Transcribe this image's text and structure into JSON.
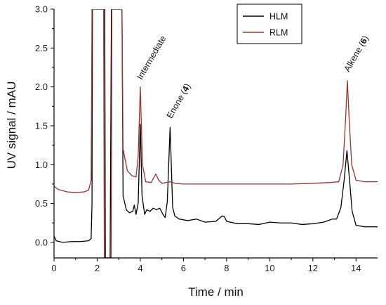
{
  "chart_data": {
    "type": "line",
    "xlabel": "Time / min",
    "ylabel": "UV signal / mAU",
    "xlim": [
      0,
      15
    ],
    "ylim": [
      -0.2,
      3.0
    ],
    "xticks": [
      0,
      2,
      4,
      6,
      8,
      10,
      12,
      14
    ],
    "yticks": [
      0.0,
      0.5,
      1.0,
      1.5,
      2.0,
      2.5,
      3.0
    ],
    "xtick_labels": [
      "0",
      "2",
      "4",
      "6",
      "8",
      "10",
      "12",
      "14"
    ],
    "ytick_labels": [
      "0.0",
      "0.5",
      "1.0",
      "1.5",
      "2.0",
      "2.5",
      "3.0"
    ],
    "grid": false,
    "legend_position": "top-right",
    "series": [
      {
        "name": "HLM",
        "color": "#000000",
        "points": [
          [
            0.0,
            0.08
          ],
          [
            0.1,
            0.02
          ],
          [
            0.4,
            0.0
          ],
          [
            0.8,
            0.01
          ],
          [
            1.2,
            0.01
          ],
          [
            1.6,
            0.02
          ],
          [
            1.72,
            0.05
          ],
          [
            1.76,
            0.5
          ],
          [
            1.78,
            3.0
          ],
          [
            2.0,
            3.0
          ],
          [
            2.2,
            3.0
          ],
          [
            2.35,
            3.0
          ],
          [
            2.38,
            -0.2
          ],
          [
            2.5,
            -0.2
          ],
          [
            2.6,
            -0.2
          ],
          [
            2.66,
            3.0
          ],
          [
            3.0,
            3.0
          ],
          [
            3.15,
            3.0
          ],
          [
            3.2,
            0.6
          ],
          [
            3.35,
            0.42
          ],
          [
            3.5,
            0.38
          ],
          [
            3.65,
            0.4
          ],
          [
            3.72,
            0.48
          ],
          [
            3.8,
            0.36
          ],
          [
            3.9,
            0.5
          ],
          [
            4.0,
            1.52
          ],
          [
            4.08,
            0.6
          ],
          [
            4.2,
            0.36
          ],
          [
            4.3,
            0.42
          ],
          [
            4.45,
            0.4
          ],
          [
            4.6,
            0.44
          ],
          [
            4.75,
            0.42
          ],
          [
            4.9,
            0.44
          ],
          [
            5.05,
            0.36
          ],
          [
            5.15,
            0.32
          ],
          [
            5.25,
            0.52
          ],
          [
            5.38,
            1.48
          ],
          [
            5.5,
            0.45
          ],
          [
            5.6,
            0.34
          ],
          [
            5.8,
            0.3
          ],
          [
            6.2,
            0.28
          ],
          [
            6.6,
            0.3
          ],
          [
            7.0,
            0.26
          ],
          [
            7.5,
            0.27
          ],
          [
            7.8,
            0.34
          ],
          [
            7.9,
            0.33
          ],
          [
            8.0,
            0.27
          ],
          [
            8.5,
            0.24
          ],
          [
            9.0,
            0.24
          ],
          [
            9.5,
            0.23
          ],
          [
            10.0,
            0.26
          ],
          [
            10.5,
            0.25
          ],
          [
            11.0,
            0.25
          ],
          [
            11.5,
            0.23
          ],
          [
            12.0,
            0.24
          ],
          [
            12.5,
            0.26
          ],
          [
            12.9,
            0.3
          ],
          [
            13.1,
            0.3
          ],
          [
            13.3,
            0.45
          ],
          [
            13.45,
            0.8
          ],
          [
            13.58,
            1.18
          ],
          [
            13.7,
            0.8
          ],
          [
            13.82,
            0.4
          ],
          [
            14.0,
            0.22
          ],
          [
            14.4,
            0.2
          ],
          [
            15.0,
            0.2
          ]
        ]
      },
      {
        "name": "RLM",
        "color": "#a0302a",
        "points": [
          [
            0.0,
            0.72
          ],
          [
            0.2,
            0.68
          ],
          [
            0.6,
            0.65
          ],
          [
            1.0,
            0.64
          ],
          [
            1.4,
            0.65
          ],
          [
            1.6,
            0.67
          ],
          [
            1.72,
            0.8
          ],
          [
            1.76,
            3.0
          ],
          [
            2.0,
            3.0
          ],
          [
            2.2,
            3.0
          ],
          [
            2.3,
            3.0
          ],
          [
            2.33,
            -0.2
          ],
          [
            2.55,
            -0.2
          ],
          [
            2.65,
            -0.2
          ],
          [
            2.68,
            3.0
          ],
          [
            3.0,
            3.0
          ],
          [
            3.15,
            3.0
          ],
          [
            3.2,
            1.2
          ],
          [
            3.4,
            0.92
          ],
          [
            3.6,
            0.86
          ],
          [
            3.8,
            0.84
          ],
          [
            3.9,
            1.1
          ],
          [
            4.0,
            2.0
          ],
          [
            4.1,
            1.0
          ],
          [
            4.25,
            0.78
          ],
          [
            4.5,
            0.77
          ],
          [
            4.72,
            0.88
          ],
          [
            4.85,
            0.8
          ],
          [
            5.0,
            0.76
          ],
          [
            5.2,
            0.77
          ],
          [
            5.38,
            0.78
          ],
          [
            5.6,
            0.76
          ],
          [
            6.0,
            0.75
          ],
          [
            7.0,
            0.75
          ],
          [
            8.0,
            0.75
          ],
          [
            9.0,
            0.75
          ],
          [
            10.0,
            0.75
          ],
          [
            11.0,
            0.75
          ],
          [
            12.0,
            0.76
          ],
          [
            12.8,
            0.77
          ],
          [
            13.2,
            0.78
          ],
          [
            13.4,
            1.0
          ],
          [
            13.52,
            1.6
          ],
          [
            13.6,
            2.08
          ],
          [
            13.68,
            1.6
          ],
          [
            13.8,
            1.0
          ],
          [
            14.0,
            0.8
          ],
          [
            14.4,
            0.78
          ],
          [
            15.0,
            0.78
          ]
        ]
      }
    ],
    "annotations": [
      {
        "text": "Intermediate",
        "x": 4.0,
        "y": 2.05,
        "rotation": -60
      },
      {
        "text": "Enone (",
        "bold": "4",
        "close": ")",
        "x": 5.38,
        "y": 1.55,
        "rotation": -60
      },
      {
        "text": "Alkene (",
        "bold": "6",
        "close": ")",
        "x": 13.6,
        "y": 2.15,
        "rotation": -60
      }
    ]
  }
}
